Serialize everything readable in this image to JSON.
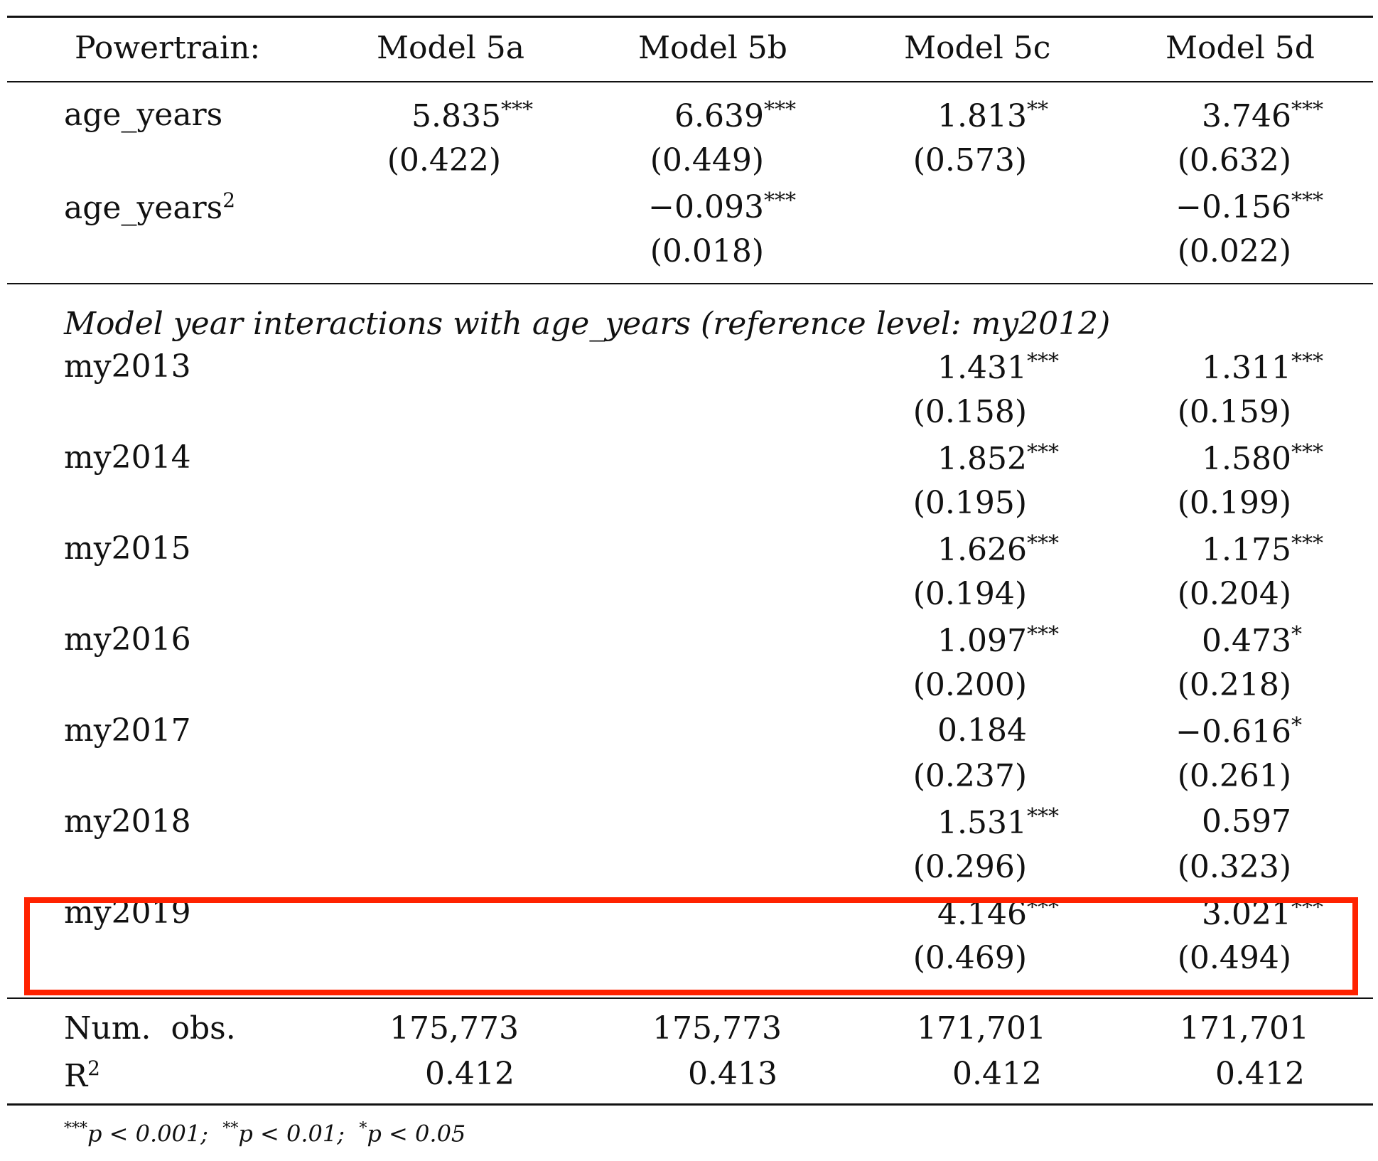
{
  "header": {
    "label": "Powertrain:",
    "models": [
      "Model 5a",
      "Model 5b",
      "Model 5c",
      "Model 5d"
    ]
  },
  "rows": {
    "age_years": {
      "label": "age_years",
      "coef": [
        "5.835",
        "6.639",
        "1.813",
        "3.746"
      ],
      "stars": [
        "***",
        "***",
        "**",
        "***"
      ],
      "se": [
        "(0.422)",
        "(0.449)",
        "(0.573)",
        "(0.632)"
      ]
    },
    "age_years_sq": {
      "label": "age_years",
      "label_sup": "2",
      "coef": [
        "",
        "−0.093",
        "",
        "−0.156"
      ],
      "stars": [
        "",
        "***",
        "",
        "***"
      ],
      "se": [
        "",
        "(0.018)",
        "",
        "(0.022)"
      ]
    }
  },
  "section_title": "Model year interactions with age_years (reference level: my2012)",
  "interactions": [
    {
      "label": "my2013",
      "c3": "1.431",
      "s3": "***",
      "se3": "(0.158)",
      "c4": "1.311",
      "s4": "***",
      "se4": "(0.159)"
    },
    {
      "label": "my2014",
      "c3": "1.852",
      "s3": "***",
      "se3": "(0.195)",
      "c4": "1.580",
      "s4": "***",
      "se4": "(0.199)"
    },
    {
      "label": "my2015",
      "c3": "1.626",
      "s3": "***",
      "se3": "(0.194)",
      "c4": "1.175",
      "s4": "***",
      "se4": "(0.204)"
    },
    {
      "label": "my2016",
      "c3": "1.097",
      "s3": "***",
      "se3": "(0.200)",
      "c4": "0.473",
      "s4": "*",
      "se4": "(0.218)"
    },
    {
      "label": "my2017",
      "c3": "0.184",
      "s3": "",
      "se3": "(0.237)",
      "c4": "−0.616",
      "s4": "*",
      "se4": "(0.261)"
    },
    {
      "label": "my2018",
      "c3": "1.531",
      "s3": "***",
      "se3": "(0.296)",
      "c4": "0.597",
      "s4": "",
      "se4": "(0.323)"
    },
    {
      "label": "my2019",
      "c3": "4.146",
      "s3": "***",
      "se3": "(0.469)",
      "c4": "3.021",
      "s4": "***",
      "se4": "(0.494)"
    }
  ],
  "stats": {
    "nobs_label": "Num.  obs.",
    "nobs": [
      "175,773",
      "175,773",
      "171,701",
      "171,701"
    ],
    "r2_label": "R",
    "r2_sup": "2",
    "r2": [
      "0.412",
      "0.413",
      "0.412",
      "0.412"
    ]
  },
  "footnote": {
    "p1_stars": "***",
    "p1": "p < 0.001;",
    "p2_stars": "**",
    "p2": "p < 0.01;",
    "p3_stars": "*",
    "p3": "p < 0.05"
  },
  "colors": {
    "highlight": "#ff2200",
    "text": "#111111"
  }
}
